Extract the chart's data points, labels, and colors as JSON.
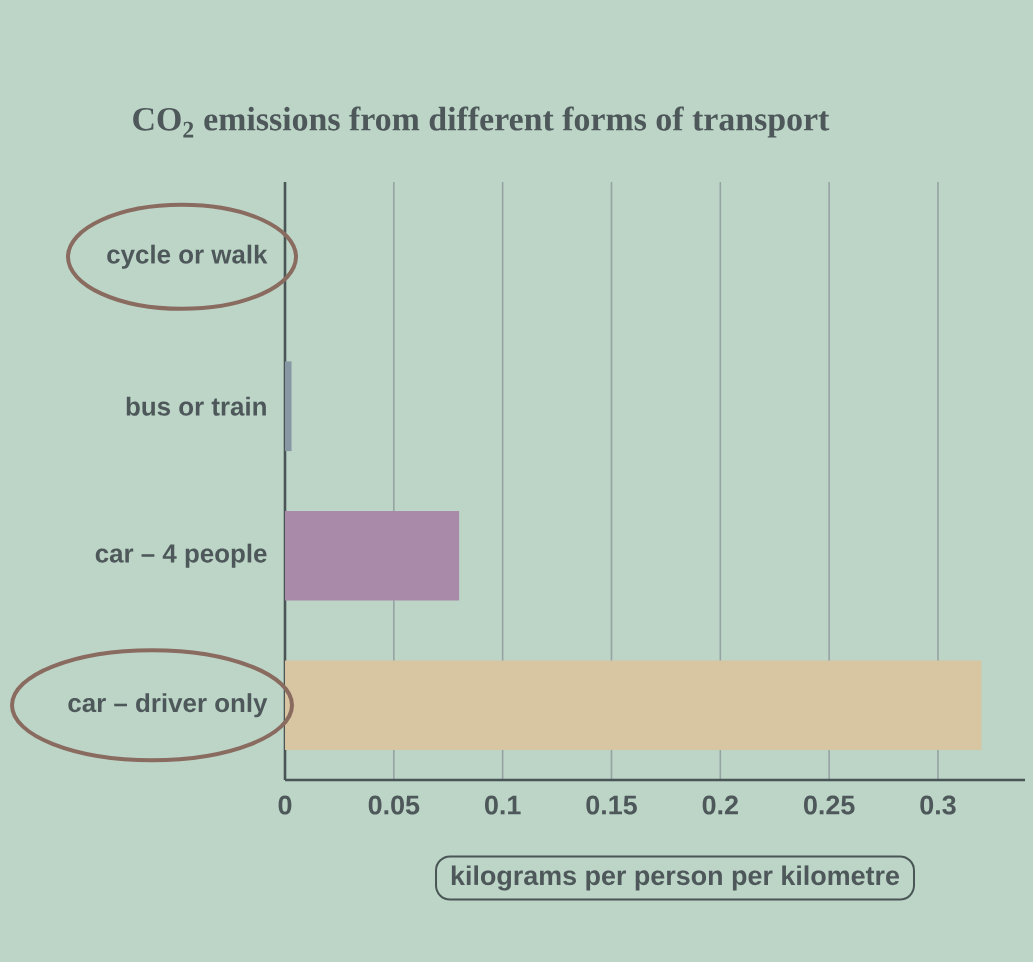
{
  "chart_data": {
    "type": "bar",
    "orientation": "horizontal",
    "title": "CO$_{2}$ emissions from different forms of transport",
    "xlabel": "kilograms per person per kilometre",
    "categories": [
      "cycle or walk",
      "bus or train",
      "car – 4 people",
      "car – driver only"
    ],
    "values": [
      0,
      0.003,
      0.08,
      0.32
    ],
    "colors": [
      null,
      "#8797a4",
      "#a98ba9",
      "#d8c5a1"
    ],
    "xlim": [
      0,
      0.34
    ],
    "xticks": [
      0,
      0.05,
      0.1,
      0.15,
      0.2,
      0.25,
      0.3
    ],
    "grid": "x"
  }
}
